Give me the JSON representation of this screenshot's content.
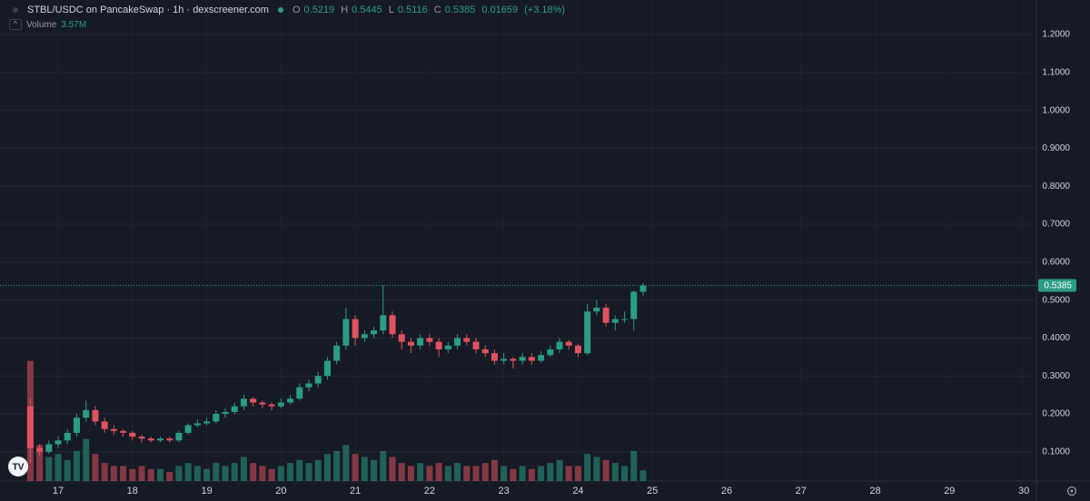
{
  "chart_data": {
    "type": "candlestick",
    "title": "STBL/USDC on PancakeSwap · 1h · dexscreener.com",
    "legend": [
      {
        "label": "O",
        "value": 0.5219
      },
      {
        "label": "H",
        "value": 0.5445
      },
      {
        "label": "L",
        "value": 0.5116
      },
      {
        "label": "C",
        "value": 0.5385
      }
    ],
    "change": 0.01659,
    "change_label": "(+3.18%)",
    "volume_label": "Volume",
    "last_volume_label": "3.57M",
    "up_color": "#2a9d84",
    "down_color": "#e0525f",
    "x": [
      16.625,
      16.75,
      16.875,
      17,
      17.125,
      17.25,
      17.375,
      17.5,
      17.625,
      17.75,
      17.875,
      18,
      18.125,
      18.25,
      18.375,
      18.5,
      18.625,
      18.75,
      18.875,
      19,
      19.125,
      19.25,
      19.375,
      19.5,
      19.625,
      19.75,
      19.875,
      20,
      20.125,
      20.25,
      20.375,
      20.5,
      20.625,
      20.75,
      20.875,
      21,
      21.125,
      21.25,
      21.375,
      21.5,
      21.625,
      21.75,
      21.875,
      22,
      22.125,
      22.25,
      22.375,
      22.5,
      22.625,
      22.75,
      22.875,
      23,
      23.125,
      23.25,
      23.375,
      23.5,
      23.625,
      23.75,
      23.875,
      24,
      24.125,
      24.25,
      24.375,
      24.5,
      24.625,
      24.75,
      24.875
    ],
    "open": [
      0.22,
      0.11,
      0.1,
      0.12,
      0.13,
      0.15,
      0.19,
      0.21,
      0.18,
      0.16,
      0.155,
      0.15,
      0.14,
      0.135,
      0.13,
      0.135,
      0.13,
      0.15,
      0.17,
      0.175,
      0.18,
      0.2,
      0.205,
      0.22,
      0.24,
      0.23,
      0.225,
      0.22,
      0.23,
      0.24,
      0.27,
      0.28,
      0.3,
      0.34,
      0.38,
      0.45,
      0.4,
      0.41,
      0.42,
      0.46,
      0.41,
      0.39,
      0.38,
      0.4,
      0.39,
      0.37,
      0.38,
      0.4,
      0.39,
      0.37,
      0.36,
      0.34,
      0.345,
      0.34,
      0.35,
      0.34,
      0.355,
      0.37,
      0.39,
      0.38,
      0.36,
      0.47,
      0.48,
      0.44,
      0.45,
      0.45,
      0.5219
    ],
    "high": [
      0.24,
      0.12,
      0.13,
      0.14,
      0.16,
      0.2,
      0.235,
      0.22,
      0.19,
      0.17,
      0.16,
      0.155,
      0.145,
      0.14,
      0.14,
      0.14,
      0.155,
      0.175,
      0.185,
      0.19,
      0.21,
      0.215,
      0.23,
      0.25,
      0.245,
      0.235,
      0.23,
      0.24,
      0.25,
      0.28,
      0.29,
      0.31,
      0.35,
      0.39,
      0.48,
      0.46,
      0.42,
      0.43,
      0.54,
      0.47,
      0.42,
      0.4,
      0.41,
      0.41,
      0.4,
      0.39,
      0.41,
      0.41,
      0.4,
      0.38,
      0.37,
      0.36,
      0.35,
      0.36,
      0.36,
      0.365,
      0.38,
      0.4,
      0.395,
      0.385,
      0.49,
      0.5,
      0.49,
      0.46,
      0.47,
      0.525,
      0.5445
    ],
    "low": [
      0.07,
      0.09,
      0.095,
      0.11,
      0.12,
      0.14,
      0.18,
      0.17,
      0.15,
      0.145,
      0.14,
      0.13,
      0.125,
      0.125,
      0.125,
      0.125,
      0.125,
      0.145,
      0.165,
      0.17,
      0.175,
      0.19,
      0.2,
      0.21,
      0.22,
      0.215,
      0.21,
      0.215,
      0.225,
      0.235,
      0.26,
      0.27,
      0.29,
      0.33,
      0.37,
      0.38,
      0.39,
      0.4,
      0.41,
      0.4,
      0.37,
      0.36,
      0.37,
      0.38,
      0.35,
      0.36,
      0.37,
      0.38,
      0.36,
      0.35,
      0.33,
      0.33,
      0.32,
      0.33,
      0.33,
      0.335,
      0.35,
      0.36,
      0.37,
      0.35,
      0.355,
      0.46,
      0.43,
      0.42,
      0.44,
      0.42,
      0.5116
    ],
    "close": [
      0.11,
      0.1,
      0.12,
      0.13,
      0.15,
      0.19,
      0.21,
      0.18,
      0.16,
      0.155,
      0.15,
      0.14,
      0.135,
      0.13,
      0.135,
      0.13,
      0.15,
      0.17,
      0.175,
      0.18,
      0.2,
      0.205,
      0.22,
      0.24,
      0.23,
      0.225,
      0.22,
      0.23,
      0.24,
      0.27,
      0.28,
      0.3,
      0.34,
      0.38,
      0.45,
      0.4,
      0.41,
      0.42,
      0.46,
      0.41,
      0.39,
      0.38,
      0.4,
      0.39,
      0.37,
      0.38,
      0.4,
      0.39,
      0.37,
      0.36,
      0.34,
      0.345,
      0.34,
      0.35,
      0.34,
      0.355,
      0.37,
      0.39,
      0.38,
      0.36,
      0.47,
      0.48,
      0.44,
      0.45,
      0.45,
      0.5219,
      0.5385
    ],
    "volume": [
      40000000,
      12000000,
      8000000,
      9000000,
      7000000,
      10000000,
      14000000,
      9000000,
      6000000,
      5000000,
      5000000,
      4000000,
      5000000,
      4000000,
      4000000,
      3000000,
      5000000,
      6000000,
      5000000,
      4000000,
      6000000,
      5000000,
      6000000,
      8000000,
      6000000,
      5000000,
      4000000,
      5000000,
      6000000,
      7000000,
      6000000,
      7000000,
      9000000,
      10000000,
      12000000,
      9000000,
      8000000,
      7000000,
      10000000,
      8000000,
      6000000,
      5000000,
      6000000,
      5000000,
      6000000,
      5000000,
      6000000,
      5000000,
      5000000,
      6000000,
      7000000,
      5000000,
      4000000,
      5000000,
      4000000,
      5000000,
      6000000,
      7000000,
      5000000,
      5000000,
      9000000,
      8000000,
      7000000,
      6000000,
      5000000,
      10000000,
      3570000
    ],
    "xlim": [
      16.217,
      30.17
    ],
    "xticks": [
      17,
      18,
      19,
      20,
      21,
      22,
      23,
      24,
      25,
      26,
      27,
      28,
      29,
      30
    ],
    "ylim": [
      0.023,
      1.291
    ],
    "yticks": [
      {
        "value": 0.1,
        "label": "0.1000"
      },
      {
        "value": 0.2,
        "label": "0.2000"
      },
      {
        "value": 0.3,
        "label": "0.3000"
      },
      {
        "value": 0.4,
        "label": "0.4000"
      },
      {
        "value": 0.5,
        "label": "0.5000"
      },
      {
        "value": 0.6,
        "label": "0.6000"
      },
      {
        "value": 0.7,
        "label": "0.7000"
      },
      {
        "value": 0.8,
        "label": "0.8000"
      },
      {
        "value": 0.9,
        "label": "0.9000"
      },
      {
        "value": 1.0,
        "label": "1.0000"
      },
      {
        "value": 1.1,
        "label": "1.1000"
      },
      {
        "value": 1.2,
        "label": "1.2000"
      }
    ],
    "y2lim": [
      0,
      160000000
    ],
    "grid": true
  }
}
